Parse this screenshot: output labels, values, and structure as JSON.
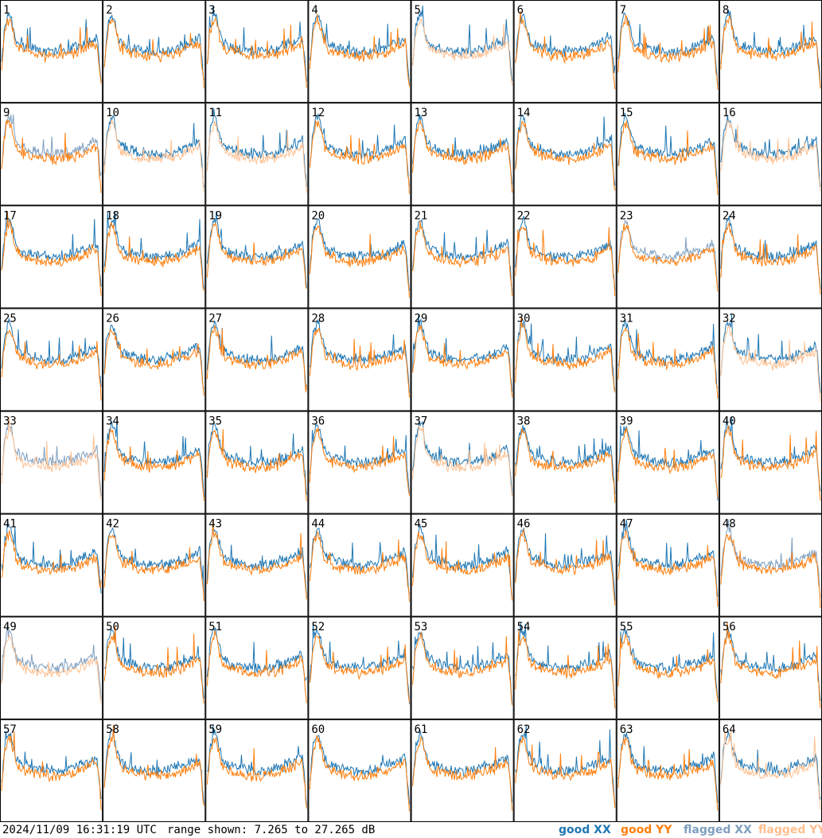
{
  "footer": {
    "timestamp": "2024/11/09 16:31:19 UTC",
    "range_text": "range shown: 7.265 to 27.265 dB"
  },
  "legend": {
    "good_xx": "good XX",
    "good_yy": "good YY",
    "flagged_xx": "flagged XX",
    "flagged_yy": "flagged YY"
  },
  "colors": {
    "good_xx": "#1f77b4",
    "good_yy": "#ff7f0e",
    "flagged_xx": "#7f9fbf",
    "flagged_yy": "#ffbf8f",
    "frame": "#000000"
  },
  "chart_data": {
    "type": "line",
    "layout": "8x8 small multiples, one panel per tile",
    "ylim": [
      7.265,
      27.265
    ],
    "yunit": "dB",
    "x_axis_labels": false,
    "series_names": [
      "good XX",
      "good YY",
      "flagged XX",
      "flagged YY"
    ],
    "panels": [
      {
        "label": "1",
        "xx_flagged": false,
        "yy_flagged": false
      },
      {
        "label": "2",
        "xx_flagged": false,
        "yy_flagged": false
      },
      {
        "label": "3",
        "xx_flagged": false,
        "yy_flagged": false
      },
      {
        "label": "4",
        "xx_flagged": false,
        "yy_flagged": false
      },
      {
        "label": "5",
        "xx_flagged": false,
        "yy_flagged": true
      },
      {
        "label": "6",
        "xx_flagged": false,
        "yy_flagged": false
      },
      {
        "label": "7",
        "xx_flagged": false,
        "yy_flagged": false
      },
      {
        "label": "8",
        "xx_flagged": false,
        "yy_flagged": false
      },
      {
        "label": "9",
        "xx_flagged": true,
        "yy_flagged": false
      },
      {
        "label": "10",
        "xx_flagged": false,
        "yy_flagged": true
      },
      {
        "label": "11",
        "xx_flagged": false,
        "yy_flagged": true
      },
      {
        "label": "12",
        "xx_flagged": false,
        "yy_flagged": false
      },
      {
        "label": "13",
        "xx_flagged": false,
        "yy_flagged": false
      },
      {
        "label": "14",
        "xx_flagged": false,
        "yy_flagged": false
      },
      {
        "label": "15",
        "xx_flagged": false,
        "yy_flagged": false
      },
      {
        "label": "16",
        "xx_flagged": false,
        "yy_flagged": true
      },
      {
        "label": "17",
        "xx_flagged": false,
        "yy_flagged": false
      },
      {
        "label": "18",
        "xx_flagged": false,
        "yy_flagged": false
      },
      {
        "label": "19",
        "xx_flagged": false,
        "yy_flagged": false
      },
      {
        "label": "20",
        "xx_flagged": false,
        "yy_flagged": false
      },
      {
        "label": "21",
        "xx_flagged": false,
        "yy_flagged": false
      },
      {
        "label": "22",
        "xx_flagged": false,
        "yy_flagged": false
      },
      {
        "label": "23",
        "xx_flagged": true,
        "yy_flagged": false
      },
      {
        "label": "24",
        "xx_flagged": false,
        "yy_flagged": false
      },
      {
        "label": "25",
        "xx_flagged": false,
        "yy_flagged": false
      },
      {
        "label": "26",
        "xx_flagged": false,
        "yy_flagged": false
      },
      {
        "label": "27",
        "xx_flagged": false,
        "yy_flagged": false
      },
      {
        "label": "28",
        "xx_flagged": false,
        "yy_flagged": false
      },
      {
        "label": "29",
        "xx_flagged": false,
        "yy_flagged": false
      },
      {
        "label": "30",
        "xx_flagged": false,
        "yy_flagged": false
      },
      {
        "label": "31",
        "xx_flagged": false,
        "yy_flagged": false
      },
      {
        "label": "32",
        "xx_flagged": false,
        "yy_flagged": true
      },
      {
        "label": "33",
        "xx_flagged": true,
        "yy_flagged": true
      },
      {
        "label": "34",
        "xx_flagged": false,
        "yy_flagged": false
      },
      {
        "label": "35",
        "xx_flagged": false,
        "yy_flagged": false
      },
      {
        "label": "36",
        "xx_flagged": false,
        "yy_flagged": false
      },
      {
        "label": "37",
        "xx_flagged": false,
        "yy_flagged": true
      },
      {
        "label": "38",
        "xx_flagged": false,
        "yy_flagged": false
      },
      {
        "label": "39",
        "xx_flagged": false,
        "yy_flagged": false
      },
      {
        "label": "40",
        "xx_flagged": false,
        "yy_flagged": false
      },
      {
        "label": "41",
        "xx_flagged": false,
        "yy_flagged": false
      },
      {
        "label": "42",
        "xx_flagged": false,
        "yy_flagged": false
      },
      {
        "label": "43",
        "xx_flagged": false,
        "yy_flagged": false
      },
      {
        "label": "44",
        "xx_flagged": false,
        "yy_flagged": false
      },
      {
        "label": "45",
        "xx_flagged": false,
        "yy_flagged": false
      },
      {
        "label": "46",
        "xx_flagged": false,
        "yy_flagged": false
      },
      {
        "label": "47",
        "xx_flagged": false,
        "yy_flagged": false
      },
      {
        "label": "48",
        "xx_flagged": true,
        "yy_flagged": false
      },
      {
        "label": "49",
        "xx_flagged": true,
        "yy_flagged": true
      },
      {
        "label": "50",
        "xx_flagged": false,
        "yy_flagged": false
      },
      {
        "label": "51",
        "xx_flagged": false,
        "yy_flagged": false
      },
      {
        "label": "52",
        "xx_flagged": false,
        "yy_flagged": false
      },
      {
        "label": "53",
        "xx_flagged": false,
        "yy_flagged": false
      },
      {
        "label": "54",
        "xx_flagged": false,
        "yy_flagged": false
      },
      {
        "label": "55",
        "xx_flagged": false,
        "yy_flagged": false
      },
      {
        "label": "56",
        "xx_flagged": false,
        "yy_flagged": false
      },
      {
        "label": "57",
        "xx_flagged": false,
        "yy_flagged": false
      },
      {
        "label": "58",
        "xx_flagged": false,
        "yy_flagged": false
      },
      {
        "label": "59",
        "xx_flagged": false,
        "yy_flagged": false
      },
      {
        "label": "60",
        "xx_flagged": false,
        "yy_flagged": false
      },
      {
        "label": "61",
        "xx_flagged": false,
        "yy_flagged": false
      },
      {
        "label": "62",
        "xx_flagged": false,
        "yy_flagged": false
      },
      {
        "label": "63",
        "xx_flagged": false,
        "yy_flagged": false
      },
      {
        "label": "64",
        "xx_flagged": false,
        "yy_flagged": true
      }
    ]
  }
}
